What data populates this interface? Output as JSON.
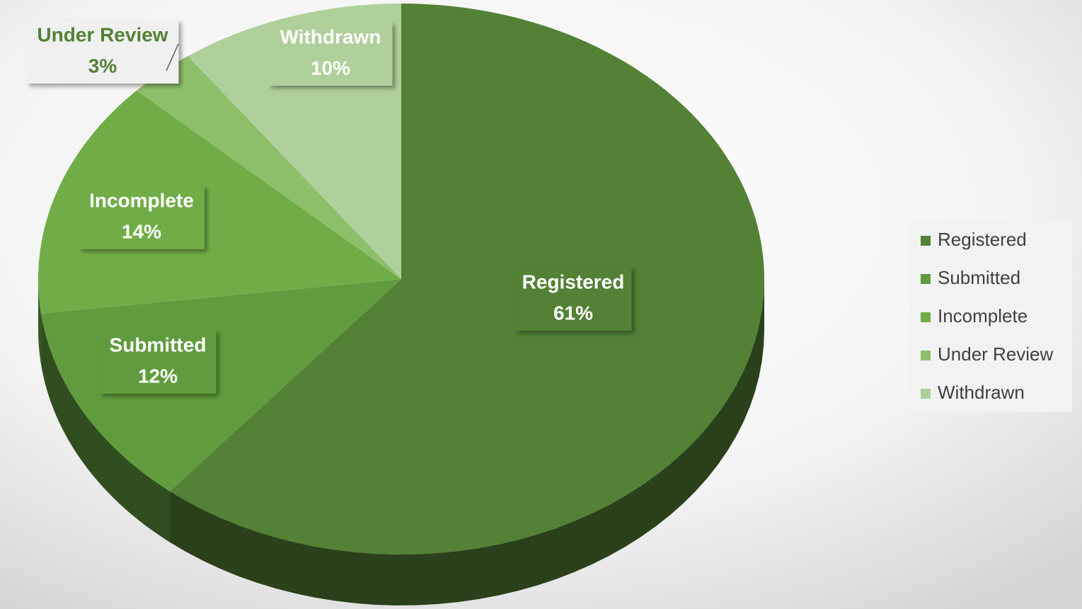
{
  "chart_data": {
    "type": "pie",
    "categories": [
      "Registered",
      "Submitted",
      "Incomplete",
      "Under Review",
      "Withdrawn"
    ],
    "values": [
      61,
      12,
      14,
      3,
      10
    ],
    "value_labels": [
      "61%",
      "12%",
      "14%",
      "3%",
      "10%"
    ],
    "colors": [
      "#538135",
      "#609c3d",
      "#70ad47",
      "#8dbf6a",
      "#afd09a"
    ],
    "legend": "right"
  }
}
